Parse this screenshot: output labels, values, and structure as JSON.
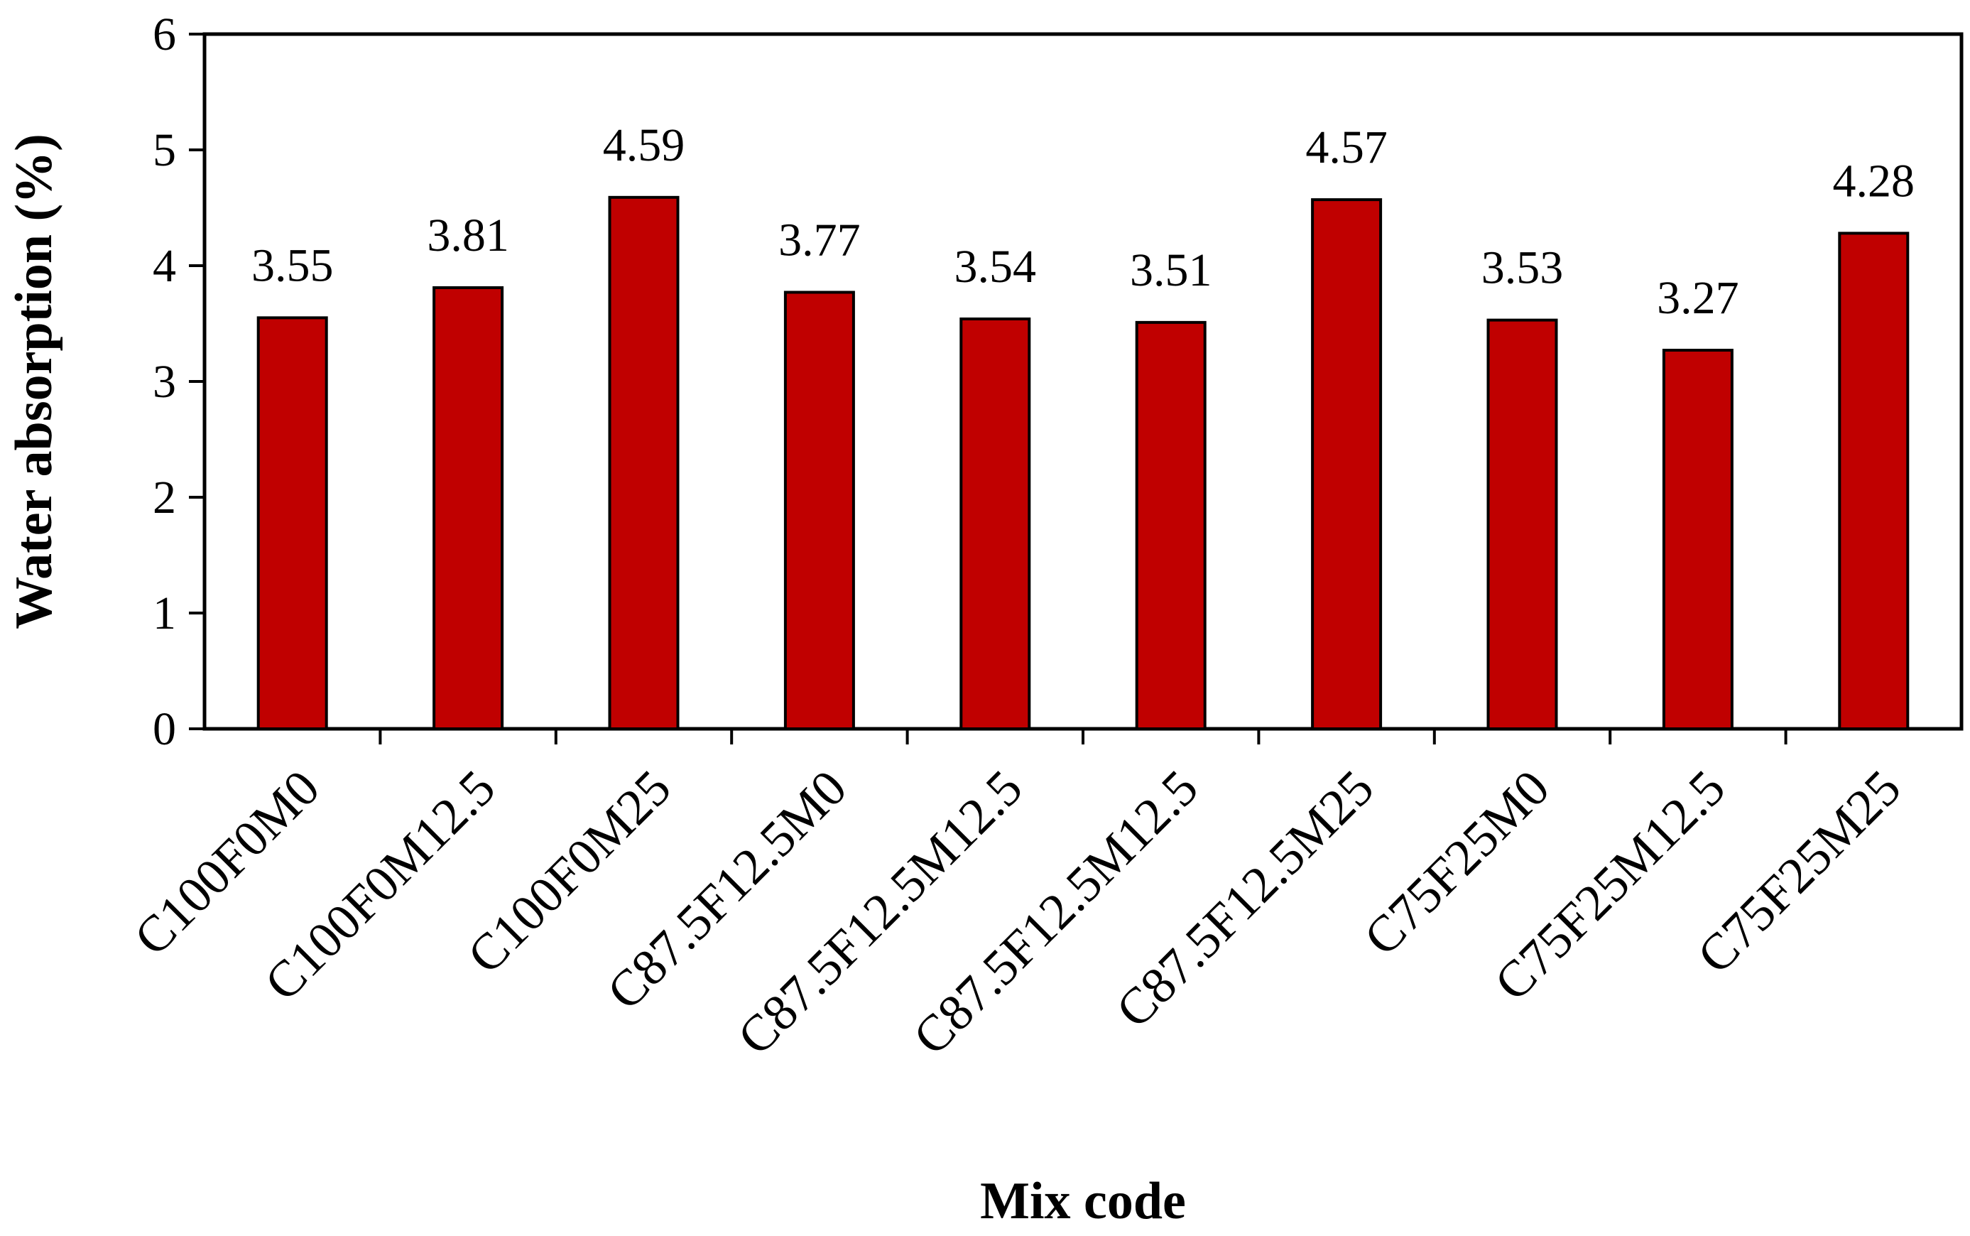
{
  "chart_data": {
    "type": "bar",
    "title": "",
    "xlabel": "Mix code",
    "ylabel": "Water absorption (%)",
    "ylim": [
      0,
      6
    ],
    "yticks": [
      0,
      1,
      2,
      3,
      4,
      5,
      6
    ],
    "grid": false,
    "legend": "none",
    "categories": [
      "C100F0M0",
      "C100F0M12.5",
      "C100F0M25",
      "C87.5F12.5M0",
      "C87.5F12.5M12.5",
      "C87.5F12.5M12.5",
      "C87.5F12.5M25",
      "C75F25M0",
      "C75F25M12.5",
      "C75F25M25"
    ],
    "values": [
      3.55,
      3.81,
      4.59,
      3.77,
      3.54,
      3.51,
      4.57,
      3.53,
      3.27,
      4.28
    ],
    "data_labels": [
      "3.55",
      "3.81",
      "4.59",
      "3.77",
      "3.54",
      "3.51",
      "4.57",
      "3.53",
      "3.27",
      "4.28"
    ],
    "colors": {
      "bar": "#c00000",
      "bar_stroke": "#000000",
      "axis": "#000000"
    }
  }
}
